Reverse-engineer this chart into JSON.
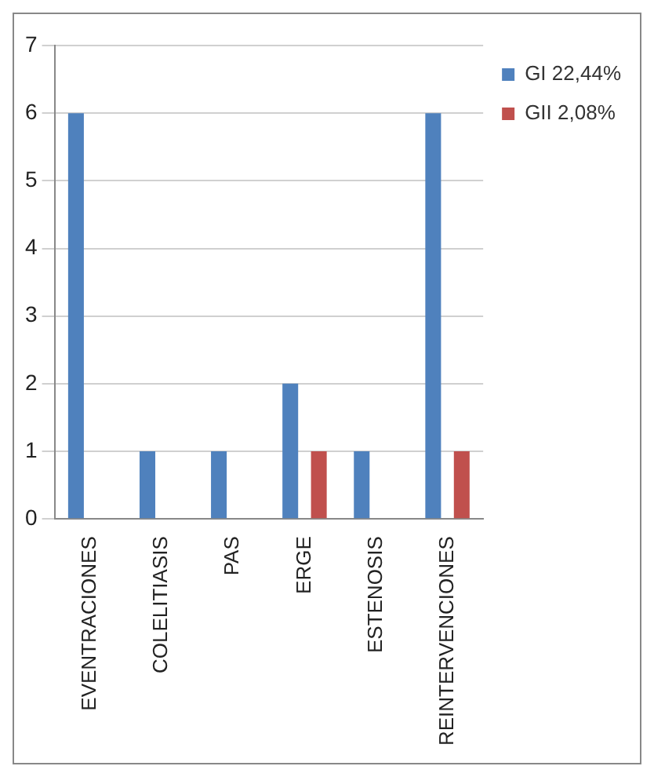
{
  "chart_data": {
    "type": "bar",
    "categories": [
      "EVENTRACIONES",
      "COLELITIASIS",
      "PAS",
      "ERGE",
      "ESTENOSIS",
      "REINTERVENCIONES"
    ],
    "series": [
      {
        "name": "GI 22,44%",
        "color": "#4f81bd",
        "values": [
          6,
          1,
          1,
          2,
          1,
          6
        ]
      },
      {
        "name": "GII 2,08%",
        "color": "#c0504d",
        "values": [
          0,
          0,
          0,
          1,
          0,
          1
        ]
      }
    ],
    "ylim": [
      0,
      7
    ],
    "yticks": [
      0,
      1,
      2,
      3,
      4,
      5,
      6,
      7
    ],
    "grid": "y",
    "legend": "right"
  }
}
